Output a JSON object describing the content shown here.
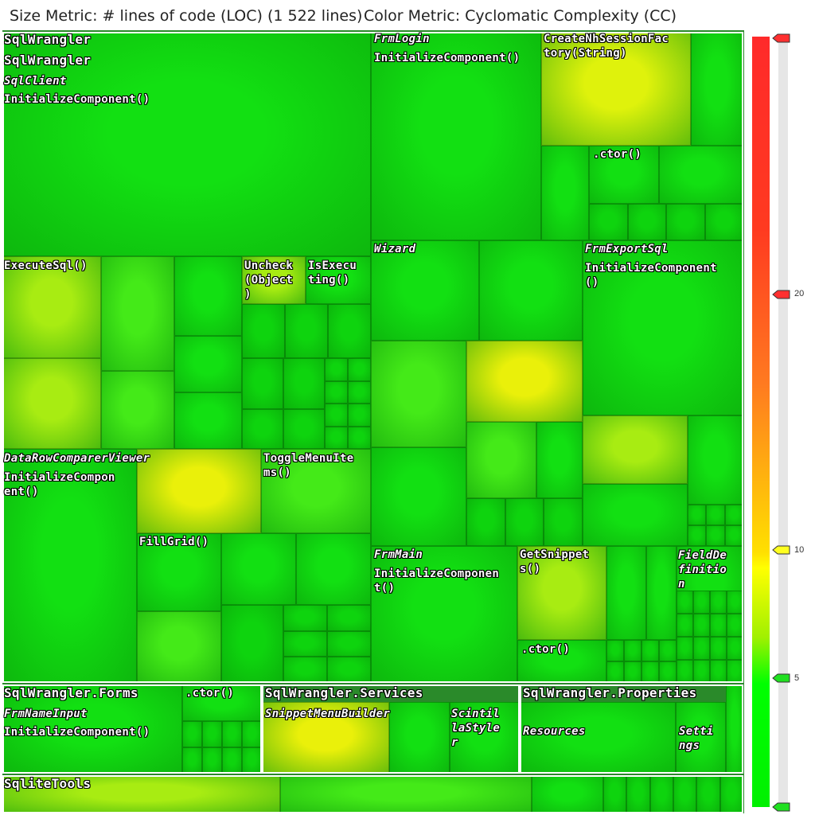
{
  "header": {
    "size_metric": "Size Metric: # lines of code (LOC) (1 522 lines)",
    "color_metric": "Color Metric: Cyclomatic Complexity (CC)"
  },
  "chart_data": {
    "type": "treemap",
    "size_metric": "# lines of code (LOC)",
    "color_metric": "Cyclomatic Complexity (CC)",
    "total_loc": 1522,
    "color_scale": [
      {
        "value": 20,
        "color": "#ff2a2a"
      },
      {
        "value": 10,
        "color": "#ffff00"
      },
      {
        "value": 5,
        "color": "#00ff00"
      }
    ],
    "legend_ticks": [
      "20",
      "10",
      "5"
    ],
    "groups": [
      {
        "name": "SqlWrangler",
        "children": [
          {
            "name": "SqlWrangler",
            "type": "namespace",
            "children": [
              {
                "name": "SqlClient",
                "methods": [
                  "InitializeComponent()",
                  "ExecuteSql()",
                  "Uncheck (Object)",
                  "IsExecuting()"
                ]
              },
              {
                "name": "DataRowComparerViewer",
                "methods": [
                  "InitializeComponent()",
                  "ToggleMenuItems()",
                  "FillGrid()"
                ]
              },
              {
                "name": "FrmLogin",
                "methods": [
                  "InitializeComponent()",
                  "CreateNhSessionFactory(String)",
                  ".ctor()"
                ]
              },
              {
                "name": "Wizard",
                "methods": []
              },
              {
                "name": "FrmExportSql",
                "methods": [
                  "InitializeComponent()"
                ]
              },
              {
                "name": "FrmMain",
                "methods": [
                  "InitializeComponent()",
                  "GetSnippets()",
                  ".ctor()"
                ]
              },
              {
                "name": "FieldDefinition",
                "methods": []
              }
            ]
          },
          {
            "name": "SqlWrangler.Forms",
            "type": "namespace",
            "children": [
              {
                "name": "FrmNameInput",
                "methods": [
                  "InitializeComponent()",
                  ".ctor()"
                ]
              }
            ]
          },
          {
            "name": "SqlWrangler.Services",
            "type": "namespace",
            "children": [
              {
                "name": "SnippetMenuBuilder",
                "methods": []
              },
              {
                "name": "ScintillaStyler",
                "methods": []
              }
            ]
          },
          {
            "name": "SqlWrangler.Properties",
            "type": "namespace",
            "children": [
              {
                "name": "Resources",
                "methods": []
              },
              {
                "name": "Settings",
                "methods": []
              }
            ]
          }
        ]
      },
      {
        "name": "SqliteTools",
        "children": []
      }
    ]
  },
  "labels": {
    "root": "SqlWrangler",
    "ns_main": "SqlWrangler",
    "sqlclient": "SqlClient",
    "sqlclient_init": "InitializeComponent()",
    "executesql": "ExecuteSql()",
    "uncheck": "Uncheck\n(Object\n)",
    "isexecuting": "IsExecu\nting()",
    "drcv": "DataRowComparerViewer",
    "drcv_init": "InitializeCompon\nent()",
    "toggle": "ToggleMenuIte\nms()",
    "fillgrid": "FillGrid()",
    "frmlogin": "FrmLogin",
    "frmlogin_init": "InitializeComponent()",
    "createnh": "CreateNhSessionFac\ntory(String)",
    "login_ctor": ".ctor()",
    "wizard": "Wizard",
    "frmexport": "FrmExportSql",
    "frmexport_init": "InitializeComponent\n()",
    "frmmain": "FrmMain",
    "frmmain_init": "InitializeComponen\nt()",
    "getsnippets": "GetSnippet\ns()",
    "main_ctor": ".ctor()",
    "fielddef": "FieldDe\nfinitio\nn",
    "ns_forms": "SqlWrangler.Forms",
    "forms_ctor": ".ctor()",
    "frmnameinput": "FrmNameInput",
    "frmnameinput_init": "InitializeComponent()",
    "ns_services": "SqlWrangler.Services",
    "snippetmenu": "SnippetMenuBuilder",
    "scintilla": "Scintil\nlaStyle\nr",
    "ns_props": "SqlWrangler.Properties",
    "resources": "Resources",
    "settings": "Setti\nngs",
    "sqlitetools": "SqliteTools"
  }
}
